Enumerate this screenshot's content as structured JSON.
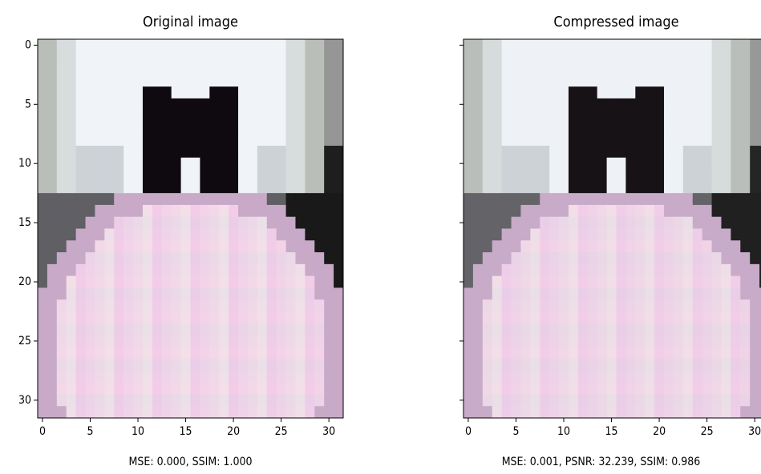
{
  "chart_data": [
    {
      "type": "image",
      "title": "Original image",
      "xlabel": "MSE: 0.000, SSIM: 1.000",
      "xlim": [
        -0.5,
        31.5
      ],
      "ylim": [
        31.5,
        -0.5
      ],
      "xticks": [
        0,
        5,
        10,
        15,
        20,
        25,
        30
      ],
      "yticks": [
        0,
        5,
        10,
        15,
        20,
        25,
        30
      ]
    },
    {
      "type": "image",
      "title": "Compressed image",
      "xlabel": "MSE: 0.001, PSNR: 32.239, SSIM: 0.986",
      "xlim": [
        -0.5,
        31.5
      ],
      "ylim": [
        31.5,
        -0.5
      ],
      "xticks": [
        0,
        5,
        10,
        15,
        20,
        25,
        30
      ]
    }
  ]
}
